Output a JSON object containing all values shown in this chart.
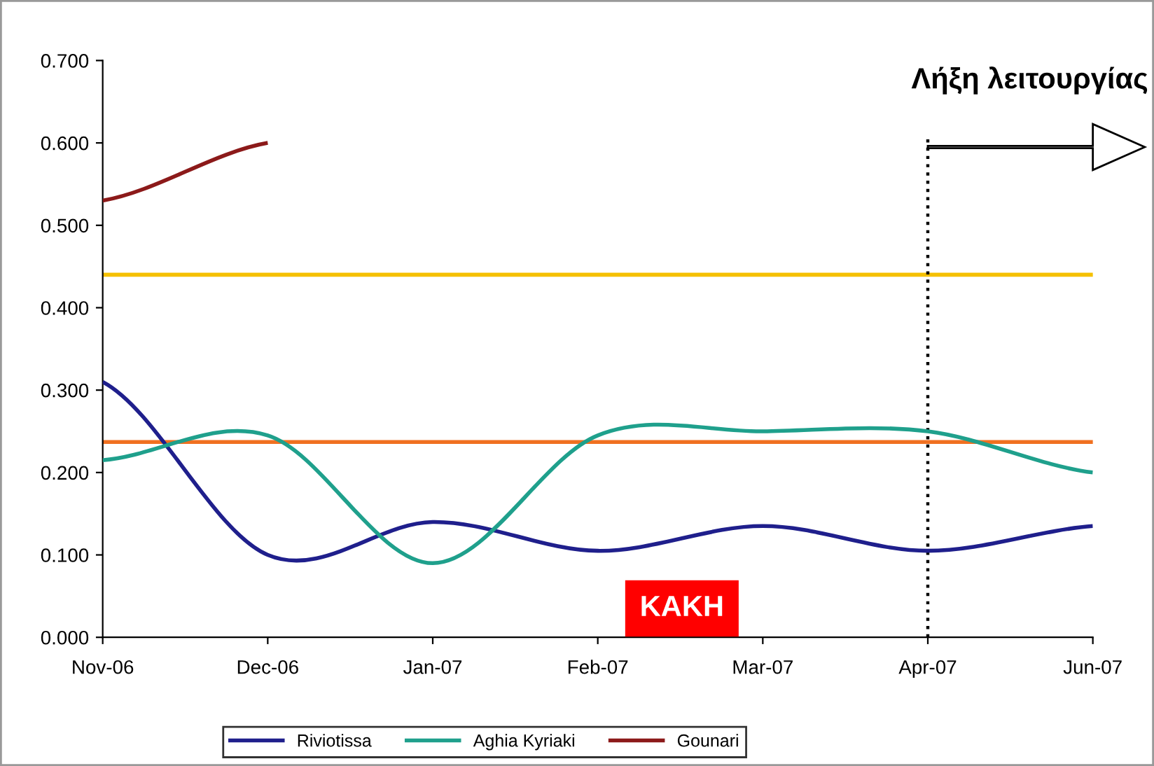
{
  "chart_data": {
    "type": "line",
    "categories": [
      "Nov-06",
      "Dec-06",
      "Jan-07",
      "Feb-07",
      "Mar-07",
      "Apr-07",
      "Jun-07"
    ],
    "series": [
      {
        "name": "Riviotissa",
        "color": "#1f1f8c",
        "values": [
          0.31,
          0.1,
          0.14,
          0.105,
          0.135,
          0.105,
          0.135
        ]
      },
      {
        "name": "Aghia Kyriaki",
        "color": "#1fa08c",
        "values": [
          0.215,
          0.245,
          0.09,
          0.245,
          0.25,
          0.25,
          0.2
        ]
      },
      {
        "name": "Gounari",
        "color": "#8c1a1a",
        "values": [
          0.53,
          0.6,
          null,
          null,
          null,
          null,
          null
        ]
      }
    ],
    "ylim": [
      0,
      0.7
    ],
    "yticks": [
      {
        "value": 0,
        "label": "0.000"
      },
      {
        "value": 0.1,
        "label": "0.100"
      },
      {
        "value": 0.2,
        "label": "0.200"
      },
      {
        "value": 0.3,
        "label": "0.300"
      },
      {
        "value": 0.4,
        "label": "0.400"
      },
      {
        "value": 0.5,
        "label": "0.500"
      },
      {
        "value": 0.6,
        "label": "0.600"
      },
      {
        "value": 0.7,
        "label": "0.700"
      }
    ],
    "ref_lines": [
      {
        "axis": "y",
        "value": 0.44,
        "color": "#f5c000"
      },
      {
        "axis": "y",
        "value": 0.237,
        "color": "#f07020"
      },
      {
        "axis": "x",
        "value": "Apr-07",
        "color": "#000000",
        "line_style": "dotted"
      }
    ],
    "annotations": [
      "Λήξη λειτουργίας",
      "KAKH"
    ],
    "legend": "bottom",
    "grid": false,
    "marker": "none",
    "line_style": "solid"
  }
}
